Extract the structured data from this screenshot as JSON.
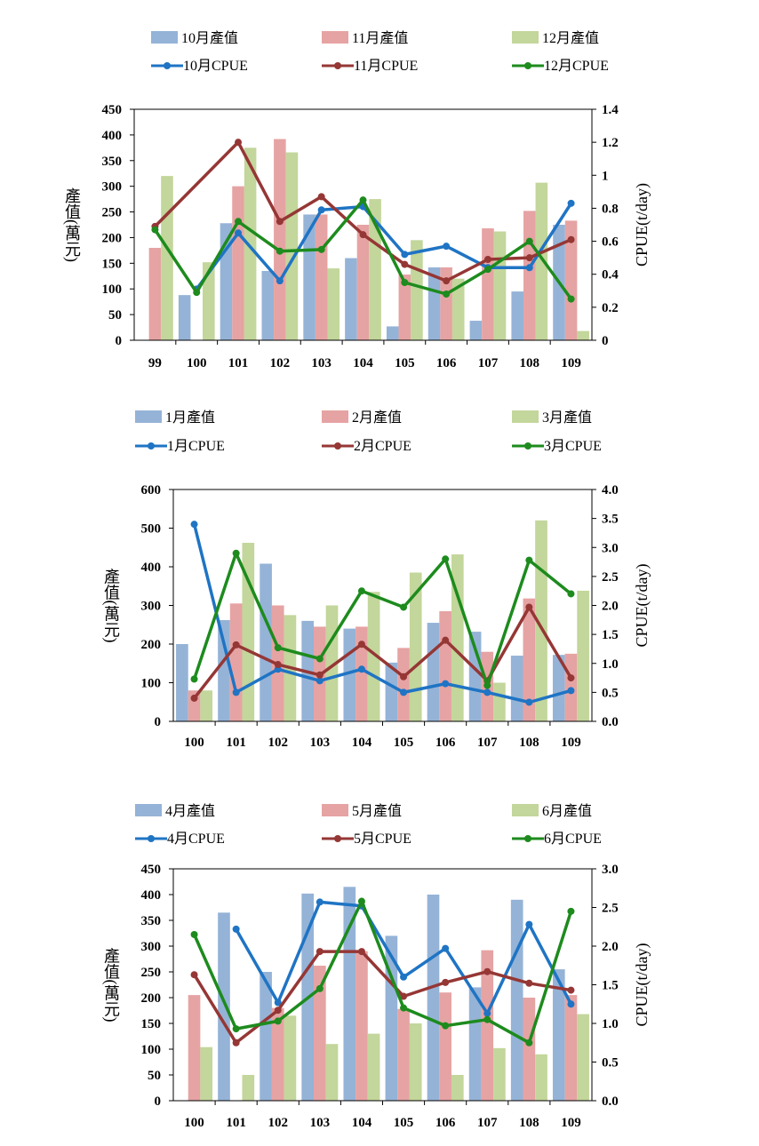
{
  "chart_data": [
    {
      "type": "bar+line",
      "categories": [
        "99",
        "100",
        "101",
        "102",
        "103",
        "104",
        "105",
        "106",
        "107",
        "108",
        "109"
      ],
      "bar_series": [
        {
          "name": "10月產值",
          "color": "#95B3D7",
          "values": [
            0,
            88,
            228,
            135,
            245,
            160,
            27,
            142,
            38,
            95,
            225
          ]
        },
        {
          "name": "11月產值",
          "color": "#E6A3A3",
          "values": [
            180,
            0,
            300,
            392,
            245,
            225,
            128,
            142,
            218,
            252,
            233
          ]
        },
        {
          "name": "12月產值",
          "color": "#C3D69B",
          "values": [
            320,
            152,
            375,
            366,
            140,
            275,
            195,
            120,
            212,
            307,
            18
          ]
        }
      ],
      "line_series": [
        {
          "name": "10月CPUE",
          "color": "#1F74C4",
          "values": [
            null,
            0.31,
            0.65,
            0.36,
            0.79,
            0.81,
            0.52,
            0.57,
            0.44,
            0.44,
            0.83
          ]
        },
        {
          "name": "11月CPUE",
          "color": "#953735",
          "values": [
            0.69,
            null,
            1.2,
            0.72,
            0.87,
            0.64,
            0.46,
            0.36,
            0.49,
            0.5,
            0.61
          ]
        },
        {
          "name": "12月CPUE",
          "color": "#1D8B1D",
          "values": [
            0.67,
            0.29,
            0.72,
            0.54,
            0.55,
            0.85,
            0.35,
            0.28,
            0.43,
            0.6,
            0.25
          ]
        }
      ],
      "ylabel_left": "產值(萬元)",
      "ylabel_right": "CPUE(t/day)",
      "ylim_left": [
        0,
        450
      ],
      "ylim_right": [
        0,
        1.4
      ],
      "yticks_left": [
        "0",
        "50",
        "100",
        "150",
        "200",
        "250",
        "300",
        "350",
        "400",
        "450"
      ],
      "yticks_right": [
        "0",
        "0.2",
        "0.4",
        "0.6",
        "0.8",
        "1",
        "1.2",
        "1.4"
      ],
      "legend_position": "top",
      "grid": false
    },
    {
      "type": "bar+line",
      "categories": [
        "100",
        "101",
        "102",
        "103",
        "104",
        "105",
        "106",
        "107",
        "108",
        "109"
      ],
      "bar_series": [
        {
          "name": "1月產值",
          "color": "#95B3D7",
          "values": [
            200,
            262,
            408,
            260,
            240,
            152,
            255,
            232,
            170,
            172
          ]
        },
        {
          "name": "2月產值",
          "color": "#E6A3A3",
          "values": [
            80,
            305,
            300,
            245,
            245,
            190,
            285,
            180,
            318,
            175
          ]
        },
        {
          "name": "3月產值",
          "color": "#C3D69B",
          "values": [
            80,
            462,
            275,
            300,
            335,
            385,
            432,
            100,
            520,
            338
          ]
        }
      ],
      "line_series": [
        {
          "name": "1月CPUE",
          "color": "#1F74C4",
          "values": [
            3.4,
            0.5,
            0.9,
            0.7,
            0.9,
            0.5,
            0.65,
            0.5,
            0.33,
            0.53
          ]
        },
        {
          "name": "2月CPUE",
          "color": "#953735",
          "values": [
            0.4,
            1.32,
            0.98,
            0.8,
            1.33,
            0.77,
            1.4,
            0.7,
            1.97,
            0.75
          ]
        },
        {
          "name": "3月CPUE",
          "color": "#1D8B1D",
          "values": [
            0.73,
            2.9,
            1.27,
            1.08,
            2.25,
            1.97,
            2.8,
            0.62,
            2.78,
            2.2
          ]
        }
      ],
      "ylabel_left": "產值(萬元)",
      "ylabel_right": "CPUE(t/day)",
      "ylim_left": [
        0,
        600
      ],
      "ylim_right": [
        0,
        4.0
      ],
      "yticks_left": [
        "0",
        "100",
        "200",
        "300",
        "400",
        "500",
        "600"
      ],
      "yticks_right": [
        "0.0",
        "0.5",
        "1.0",
        "1.5",
        "2.0",
        "2.5",
        "3.0",
        "3.5",
        "4.0"
      ],
      "legend_position": "top",
      "grid": false
    },
    {
      "type": "bar+line",
      "categories": [
        "100",
        "101",
        "102",
        "103",
        "104",
        "105",
        "106",
        "107",
        "108",
        "109"
      ],
      "bar_series": [
        {
          "name": "4月產值",
          "color": "#95B3D7",
          "values": [
            0,
            365,
            250,
            402,
            415,
            320,
            400,
            220,
            390,
            255
          ]
        },
        {
          "name": "5月產值",
          "color": "#E6A3A3",
          "values": [
            205,
            0,
            180,
            262,
            290,
            178,
            210,
            292,
            200,
            205
          ]
        },
        {
          "name": "6月產值",
          "color": "#C3D69B",
          "values": [
            104,
            50,
            165,
            110,
            130,
            150,
            50,
            102,
            90,
            168
          ]
        }
      ],
      "line_series": [
        {
          "name": "4月CPUE",
          "color": "#1F74C4",
          "values": [
            null,
            2.22,
            1.27,
            2.57,
            2.52,
            1.6,
            1.97,
            1.13,
            2.28,
            1.25
          ]
        },
        {
          "name": "5月CPUE",
          "color": "#953735",
          "values": [
            1.63,
            0.75,
            1.17,
            1.93,
            1.93,
            1.35,
            1.53,
            1.67,
            1.52,
            1.43
          ]
        },
        {
          "name": "6月CPUE",
          "color": "#1D8B1D",
          "values": [
            2.15,
            0.93,
            1.03,
            1.45,
            2.58,
            1.2,
            0.97,
            1.05,
            0.75,
            2.45
          ]
        }
      ],
      "ylabel_left": "產值(萬元)",
      "ylabel_right": "CPUE(t/day)",
      "ylim_left": [
        0,
        450
      ],
      "ylim_right": [
        0,
        3.0
      ],
      "yticks_left": [
        "0",
        "50",
        "100",
        "150",
        "200",
        "250",
        "300",
        "350",
        "400",
        "450"
      ],
      "yticks_right": [
        "0.0",
        "0.5",
        "1.0",
        "1.5",
        "2.0",
        "2.5",
        "3.0"
      ],
      "legend_position": "top",
      "grid": false
    }
  ]
}
